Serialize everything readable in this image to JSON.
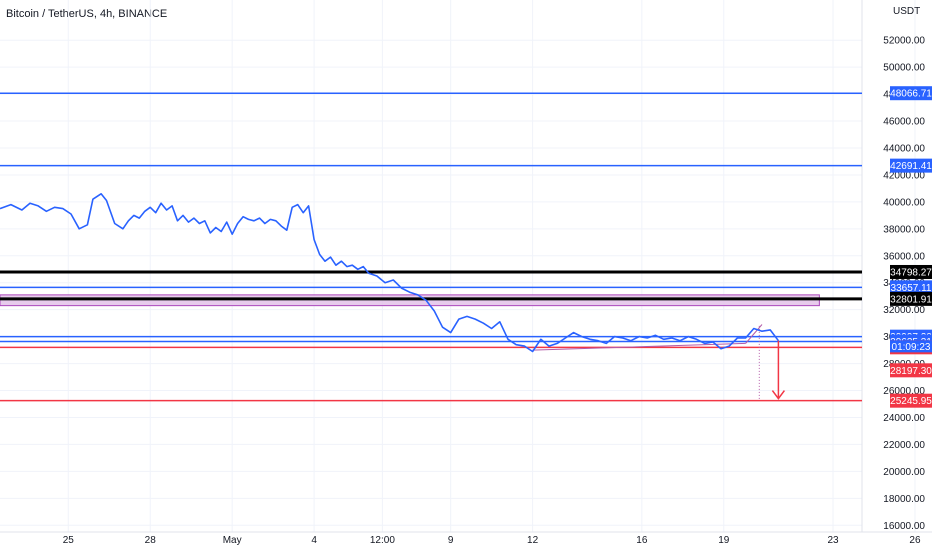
{
  "header": {
    "title": "Bitcoin / TetherUS, 4h, BINANCE"
  },
  "axis": {
    "currency": "USDT"
  },
  "colors": {
    "price_line": "#2962ff",
    "blue_level": "#2962ff",
    "black_level": "#000000",
    "red_level": "#f23645",
    "pink_zone_fill": "#e1bee7",
    "pink_zone_border": "#ab47bc",
    "trendline": "#b45ca8",
    "arrow": "#f23645",
    "grid": "#f0f3fa",
    "axis_text": "#131722"
  },
  "chart_data": {
    "type": "line",
    "title": "Bitcoin / TetherUS, 4h, BINANCE",
    "xlabel": "",
    "ylabel": "USDT",
    "ylim": [
      15500,
      53500
    ],
    "x_range_days": [
      -2.5,
      29.5
    ],
    "x_ticks": [
      {
        "label": "25",
        "d": 0
      },
      {
        "label": "28",
        "d": 3
      },
      {
        "label": "May",
        "d": 6
      },
      {
        "label": "4",
        "d": 9
      },
      {
        "label": "12:00",
        "d": 11.5
      },
      {
        "label": "9",
        "d": 14
      },
      {
        "label": "12",
        "d": 17
      },
      {
        "label": "16",
        "d": 21
      },
      {
        "label": "19",
        "d": 24
      },
      {
        "label": "23",
        "d": 28
      },
      {
        "label": "26",
        "d": 31
      }
    ],
    "y_ticks": [
      16000,
      18000,
      20000,
      22000,
      24000,
      26000,
      28000,
      30000,
      32000,
      34000,
      36000,
      38000,
      40000,
      42000,
      44000,
      46000,
      48000,
      50000,
      52000
    ],
    "grid": true,
    "series": [
      {
        "x": [
          -2.5,
          -2.1,
          -1.7,
          -1.4,
          -1.1,
          -0.8,
          -0.5,
          -0.2,
          0.1,
          0.4,
          0.7,
          0.9,
          1.2,
          1.4,
          1.7,
          2.0,
          2.2,
          2.4,
          2.6,
          2.8,
          3.0,
          3.2,
          3.4,
          3.6,
          3.8,
          4.0,
          4.2,
          4.4,
          4.6,
          4.8,
          5.0,
          5.2,
          5.4,
          5.6,
          5.8,
          6.0,
          6.2,
          6.4,
          6.6,
          6.8,
          7.0,
          7.2,
          7.4,
          7.6,
          7.8,
          8.0,
          8.2,
          8.4,
          8.6,
          8.8,
          9.0,
          9.2,
          9.4,
          9.6,
          9.8,
          10.0,
          10.2,
          10.4,
          10.6,
          10.8,
          11.0,
          11.3,
          11.6,
          11.9,
          12.2,
          12.5,
          12.8,
          13.1,
          13.4,
          13.7,
          14.0,
          14.3,
          14.6,
          14.9,
          15.2,
          15.5,
          15.8,
          16.1,
          16.4,
          16.7,
          17.0,
          17.3,
          17.6,
          17.9,
          18.2,
          18.5,
          18.8,
          19.1,
          19.4,
          19.7,
          20.0,
          20.3,
          20.6,
          20.9,
          21.2,
          21.5,
          21.8,
          22.1,
          22.4,
          22.7,
          23.0,
          23.3,
          23.6,
          23.9,
          24.2,
          24.5,
          24.8,
          25.1,
          25.4,
          25.7,
          26.0
        ],
        "y": [
          39500,
          39800,
          39400,
          39900,
          39700,
          39300,
          39600,
          39500,
          39100,
          38000,
          38300,
          40200,
          40600,
          40100,
          38400,
          38000,
          38600,
          39000,
          38800,
          39300,
          39600,
          39200,
          39900,
          39400,
          39700,
          38600,
          39000,
          38500,
          38800,
          38400,
          38600,
          37700,
          38100,
          37800,
          38500,
          37600,
          38400,
          38900,
          38700,
          38600,
          38800,
          38400,
          38700,
          38600,
          38200,
          37900,
          39600,
          39800,
          39200,
          39700,
          37200,
          36100,
          35600,
          35900,
          35300,
          35600,
          35200,
          35300,
          35000,
          35200,
          34700,
          34500,
          34000,
          34200,
          33600,
          33300,
          33100,
          32700,
          31900,
          30700,
          30300,
          31300,
          31500,
          31300,
          31000,
          30600,
          31100,
          29800,
          29400,
          29300,
          28900,
          29800,
          29300,
          29500,
          29900,
          30300,
          30000,
          29800,
          29700,
          29500,
          30000,
          29900,
          29700,
          30000,
          29900,
          30100,
          29800,
          29900,
          29700,
          30000,
          29800,
          29500,
          29600,
          29100,
          29300,
          29900,
          29900,
          30600,
          30400,
          30500,
          29700
        ]
      }
    ],
    "horizontal_levels": [
      {
        "label": "48066.71",
        "value": 48066.71,
        "color": "#2962ff",
        "kind": "blue"
      },
      {
        "label": "42691.41",
        "value": 42691.41,
        "color": "#2962ff",
        "kind": "blue"
      },
      {
        "label": "34798.27",
        "value": 34798.27,
        "color": "#000000",
        "kind": "black"
      },
      {
        "label": "33657.11",
        "value": 33657.11,
        "color": "#2962ff",
        "kind": "blue"
      },
      {
        "label": "32801.91",
        "value": 32801.91,
        "color": "#000000",
        "kind": "black"
      },
      {
        "label": "29997.20",
        "value": 29997.2,
        "color": "#2962ff",
        "kind": "blue"
      },
      {
        "label": "29635.31",
        "value": 29635.31,
        "color": "#2962ff",
        "kind": "blue"
      },
      {
        "label": "29206.91",
        "value": 29206.91,
        "color": "#f23645",
        "kind": "red"
      },
      {
        "label": "25245.95",
        "value": 25245.95,
        "color": "#f23645",
        "kind": "red"
      }
    ],
    "countdown": {
      "label": "01:09:23",
      "value": 29280
    },
    "current_price_tag": {
      "label": "28197.30",
      "value": 27500,
      "color": "#f23645"
    },
    "pink_zone": {
      "from": 32300,
      "to": 33100,
      "x_end": 27.5
    },
    "trendline": [
      {
        "x": 17,
        "y": 29000
      },
      {
        "x": 24.8,
        "y": 29500
      }
    ],
    "trendline_up": [
      {
        "x": 24.8,
        "y": 29500
      },
      {
        "x": 25.4,
        "y": 30900
      }
    ],
    "dotted_vertical": {
      "x": 25.3,
      "y1": 30800,
      "y2": 25245.95
    },
    "arrow": {
      "x": 26.0,
      "y_from": 29700,
      "y_to": 25400
    }
  }
}
